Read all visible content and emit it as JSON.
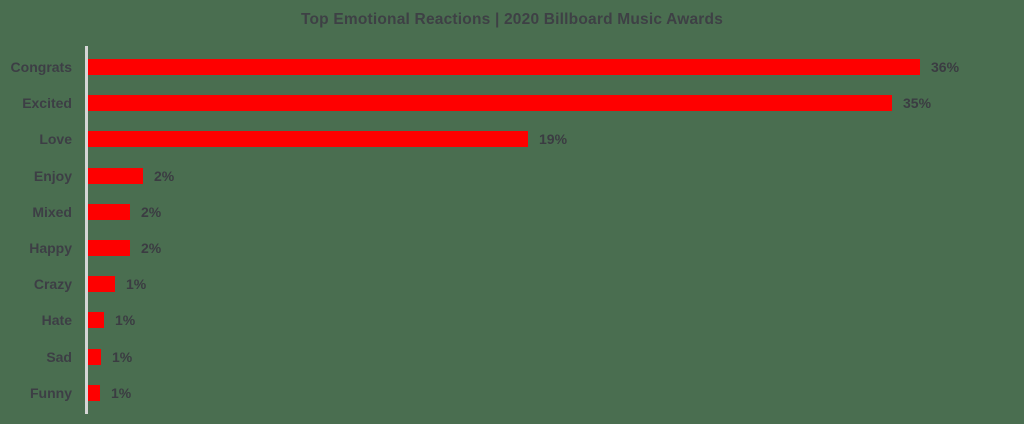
{
  "title": "Top Emotional Reactions | 2020 Billboard Music Awards",
  "colors": {
    "background": "#4a6e50",
    "bar": "#fe0000",
    "title_text": "#3e4045",
    "category_text": "#3d3e45",
    "value_text": "#3b3c42",
    "axis_line": "#d6d6d6"
  },
  "chart_data": {
    "type": "bar",
    "orientation": "horizontal",
    "title": "Top Emotional Reactions | 2020 Billboard Music Awards",
    "categories": [
      "Congrats",
      "Excited",
      "Love",
      "Enjoy",
      "Mixed",
      "Happy",
      "Crazy",
      "Hate",
      "Sad",
      "Funny"
    ],
    "values": [
      36,
      35,
      19,
      2,
      2,
      2,
      1,
      1,
      1,
      1
    ],
    "value_labels": [
      "36%",
      "35%",
      "19%",
      "2%",
      "2%",
      "2%",
      "1%",
      "1%",
      "1%",
      "1%"
    ],
    "values_precise": [
      36,
      34.8,
      19.05,
      2.4,
      1.8,
      1.8,
      1.15,
      0.7,
      0.55,
      0.5
    ],
    "unit": "%",
    "xlabel": "",
    "ylabel": "",
    "xlim": [
      0,
      40
    ],
    "legend": false,
    "gridlines": false,
    "bars_sorted_descending": true
  }
}
